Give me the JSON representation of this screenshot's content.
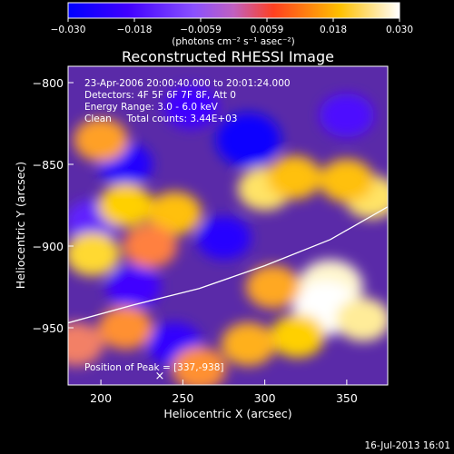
{
  "chart_data": {
    "type": "heatmap",
    "title": "Reconstructed RHESSI Image",
    "xlabel": "Heliocentric X (arcsec)",
    "ylabel": "Heliocentric Y (arcsec)",
    "xlim": [
      180,
      375
    ],
    "ylim": [
      -985,
      -790
    ],
    "x_ticks": [
      200,
      250,
      300,
      350
    ],
    "y_ticks": [
      -800,
      -850,
      -900,
      -950
    ],
    "colorbar": {
      "min": -0.03,
      "max": 0.03,
      "ticks": [
        "-0.030",
        "-0.018",
        "-0.0059",
        "0.0059",
        "0.018",
        "0.030"
      ],
      "unit_label": "(photons cm⁻² s⁻¹ asec⁻²)",
      "colormap": [
        "#0000ff",
        "#4000ff",
        "#8040ff",
        "#c080ff",
        "#ff8040",
        "#ffd000",
        "#ffffff"
      ]
    },
    "annotations": [
      "23-Apr-2006 20:00:40.000 to 20:01:24.000",
      "Detectors: 4F 5F 6F 7F 8F, Att 0",
      "Energy Range: 3.0 - 6.0 keV",
      "Clean     Total counts: 3.44E+03"
    ],
    "peak_label": "Position of Peak = [337,-938]",
    "peak": [
      337,
      -938
    ],
    "limb": [
      [
        180,
        -947
      ],
      [
        220,
        -936
      ],
      [
        260,
        -926
      ],
      [
        300,
        -912
      ],
      [
        340,
        -896
      ],
      [
        375,
        -876
      ]
    ],
    "blobs": [
      {
        "x": 255,
        "y": -815,
        "v": -0.02
      },
      {
        "x": 215,
        "y": -850,
        "v": -0.025
      },
      {
        "x": 290,
        "y": -835,
        "v": -0.028
      },
      {
        "x": 275,
        "y": -895,
        "v": -0.024
      },
      {
        "x": 220,
        "y": -925,
        "v": -0.02
      },
      {
        "x": 245,
        "y": -960,
        "v": -0.022
      },
      {
        "x": 195,
        "y": -885,
        "v": -0.015
      },
      {
        "x": 350,
        "y": -820,
        "v": -0.018
      },
      {
        "x": 200,
        "y": -835,
        "v": 0.014
      },
      {
        "x": 215,
        "y": -875,
        "v": 0.02
      },
      {
        "x": 245,
        "y": -880,
        "v": 0.018
      },
      {
        "x": 195,
        "y": -905,
        "v": 0.022
      },
      {
        "x": 230,
        "y": -900,
        "v": 0.01
      },
      {
        "x": 300,
        "y": -865,
        "v": 0.024
      },
      {
        "x": 318,
        "y": -858,
        "v": 0.018
      },
      {
        "x": 365,
        "y": -870,
        "v": 0.024
      },
      {
        "x": 350,
        "y": -860,
        "v": 0.018
      },
      {
        "x": 340,
        "y": -925,
        "v": 0.028
      },
      {
        "x": 337,
        "y": -938,
        "v": 0.03
      },
      {
        "x": 360,
        "y": -945,
        "v": 0.026
      },
      {
        "x": 320,
        "y": -955,
        "v": 0.02
      },
      {
        "x": 305,
        "y": -925,
        "v": 0.015
      },
      {
        "x": 290,
        "y": -960,
        "v": 0.016
      },
      {
        "x": 215,
        "y": -950,
        "v": 0.012
      },
      {
        "x": 260,
        "y": -975,
        "v": 0.012
      },
      {
        "x": 185,
        "y": -960,
        "v": 0.008
      }
    ]
  },
  "footer": {
    "timestamp": "16-Jul-2013 16:01"
  }
}
